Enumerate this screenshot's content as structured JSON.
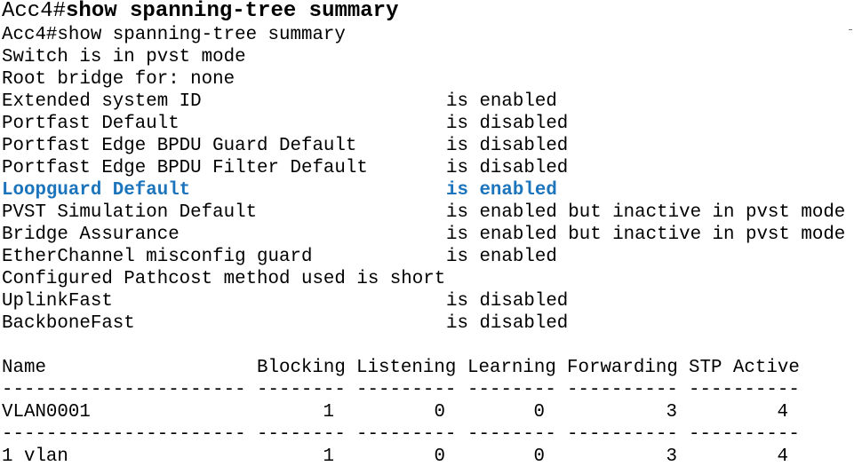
{
  "header": {
    "prompt": "Acc4#",
    "command": "show spanning-tree summary"
  },
  "echo": "Acc4#show spanning-tree summary",
  "lines": [
    "Switch is in pvst mode",
    "Root bridge for: none"
  ],
  "features": [
    {
      "name": "Extended system ID",
      "status": "is enabled"
    },
    {
      "name": "Portfast Default",
      "status": "is disabled"
    },
    {
      "name": "Portfast Edge BPDU Guard Default",
      "status": "is disabled"
    },
    {
      "name": "Portfast Edge BPDU Filter Default",
      "status": "is disabled"
    },
    {
      "name": "Loopguard Default",
      "status": "is enabled",
      "highlight": true
    },
    {
      "name": "PVST Simulation Default",
      "status": "is enabled but inactive in pvst mode"
    },
    {
      "name": "Bridge Assurance",
      "status": "is enabled but inactive in pvst mode"
    },
    {
      "name": "EtherChannel misconfig guard",
      "status": "is enabled"
    }
  ],
  "pathcost_line": "Configured Pathcost method used is short",
  "features2": [
    {
      "name": "UplinkFast",
      "status": "is disabled"
    },
    {
      "name": "BackboneFast",
      "status": "is disabled"
    }
  ],
  "table": {
    "headers": [
      "Name",
      "Blocking",
      "Listening",
      "Learning",
      "Forwarding",
      "STP Active"
    ],
    "dashes": [
      "----------------------",
      "--------",
      "---------",
      "--------",
      "----------",
      "----------"
    ],
    "rows": [
      [
        "VLAN0001",
        "1",
        "0",
        "0",
        "3",
        "4"
      ]
    ],
    "summary": [
      "1 vlan",
      "1",
      "0",
      "0",
      "3",
      "4"
    ]
  },
  "colors": {
    "highlight": "#1c75bc",
    "text": "#000000",
    "background": "#ffffff"
  }
}
